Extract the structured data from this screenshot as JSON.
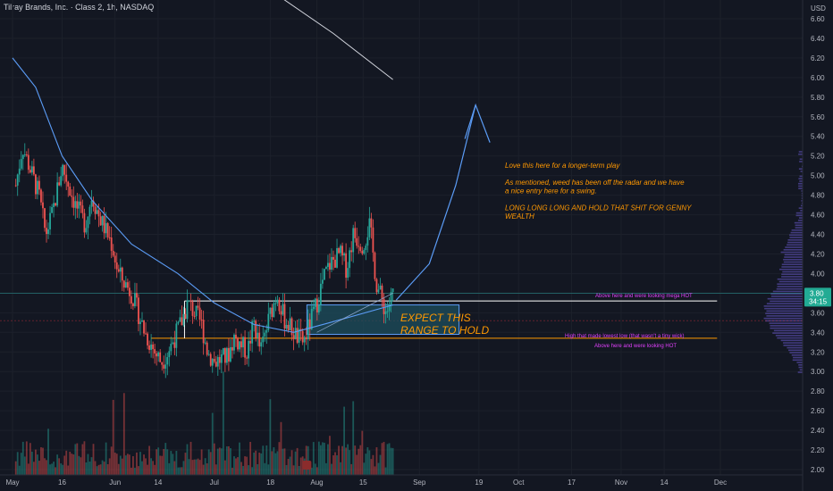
{
  "chart_data": {
    "type": "candlestick",
    "title": "Tilray Brands, Inc. · Class 2, 1h, NASDAQ",
    "currency": "USD",
    "y_ticks": [
      6.6,
      6.4,
      6.2,
      6.0,
      5.8,
      5.6,
      5.4,
      5.2,
      5.0,
      4.8,
      4.6,
      4.4,
      4.2,
      4.0,
      3.8,
      3.6,
      3.4,
      3.2,
      3.0,
      2.8,
      2.6,
      2.4,
      2.2,
      2.0
    ],
    "ylim": [
      1.95,
      6.78
    ],
    "x_labels": [
      "May",
      "16",
      "Jun",
      "14",
      "Jul",
      "18",
      "Aug",
      "15",
      "Sep",
      "19",
      "Oct",
      "17",
      "Nov",
      "14",
      "Dec"
    ],
    "last_price": "3.80",
    "countdown": "34:15",
    "price_path": [
      {
        "x": "2022-05-02",
        "y": 4.9
      },
      {
        "x": "2022-05-04",
        "y": 5.3
      },
      {
        "x": "2022-05-06",
        "y": 5.1
      },
      {
        "x": "2022-05-09",
        "y": 4.8
      },
      {
        "x": "2022-05-11",
        "y": 4.4
      },
      {
        "x": "2022-05-13",
        "y": 4.6
      },
      {
        "x": "2022-05-16",
        "y": 5.1
      },
      {
        "x": "2022-05-18",
        "y": 4.9
      },
      {
        "x": "2022-05-20",
        "y": 4.7
      },
      {
        "x": "2022-05-23",
        "y": 4.5
      },
      {
        "x": "2022-05-25",
        "y": 4.8
      },
      {
        "x": "2022-05-27",
        "y": 4.6
      },
      {
        "x": "2022-05-31",
        "y": 4.3
      },
      {
        "x": "2022-06-02",
        "y": 4.0
      },
      {
        "x": "2022-06-06",
        "y": 3.8
      },
      {
        "x": "2022-06-08",
        "y": 3.6
      },
      {
        "x": "2022-06-10",
        "y": 3.4
      },
      {
        "x": "2022-06-13",
        "y": 3.2
      },
      {
        "x": "2022-06-15",
        "y": 3.1
      },
      {
        "x": "2022-06-17",
        "y": 3.2
      },
      {
        "x": "2022-06-21",
        "y": 3.5
      },
      {
        "x": "2022-06-23",
        "y": 3.7
      },
      {
        "x": "2022-06-27",
        "y": 3.5
      },
      {
        "x": "2022-06-29",
        "y": 3.2
      },
      {
        "x": "2022-07-01",
        "y": 3.1
      },
      {
        "x": "2022-07-05",
        "y": 3.15
      },
      {
        "x": "2022-07-07",
        "y": 3.35
      },
      {
        "x": "2022-07-11",
        "y": 3.2
      },
      {
        "x": "2022-07-13",
        "y": 3.5
      },
      {
        "x": "2022-07-15",
        "y": 3.2
      },
      {
        "x": "2022-07-18",
        "y": 3.6
      },
      {
        "x": "2022-07-20",
        "y": 3.8
      },
      {
        "x": "2022-07-22",
        "y": 3.55
      },
      {
        "x": "2022-07-26",
        "y": 3.35
      },
      {
        "x": "2022-07-28",
        "y": 3.3
      },
      {
        "x": "2022-08-01",
        "y": 3.7
      },
      {
        "x": "2022-08-03",
        "y": 3.95
      },
      {
        "x": "2022-08-05",
        "y": 4.1
      },
      {
        "x": "2022-08-08",
        "y": 4.2
      },
      {
        "x": "2022-08-10",
        "y": 4.05
      },
      {
        "x": "2022-08-12",
        "y": 4.4
      },
      {
        "x": "2022-08-15",
        "y": 4.3
      },
      {
        "x": "2022-08-17",
        "y": 4.5
      },
      {
        "x": "2022-08-19",
        "y": 3.9
      },
      {
        "x": "2022-08-22",
        "y": 3.6
      },
      {
        "x": "2022-08-24",
        "y": 3.8
      }
    ],
    "moving_average": [
      {
        "x": "2022-05-01",
        "y": 6.2
      },
      {
        "x": "2022-05-08",
        "y": 5.9
      },
      {
        "x": "2022-05-16",
        "y": 5.2
      },
      {
        "x": "2022-05-25",
        "y": 4.75
      },
      {
        "x": "2022-06-06",
        "y": 4.3
      },
      {
        "x": "2022-06-20",
        "y": 4.0
      },
      {
        "x": "2022-07-01",
        "y": 3.7
      },
      {
        "x": "2022-07-13",
        "y": 3.48
      },
      {
        "x": "2022-07-25",
        "y": 3.4
      },
      {
        "x": "2022-08-05",
        "y": 3.5
      },
      {
        "x": "2022-08-24",
        "y": 3.68
      }
    ],
    "upper_ma": [
      {
        "x": "2022-07-21",
        "y": 6.82
      },
      {
        "x": "2022-08-06",
        "y": 6.45
      },
      {
        "x": "2022-08-24",
        "y": 5.98
      }
    ],
    "projection": [
      {
        "x": "2022-08-25",
        "y": 3.73
      },
      {
        "x": "2022-09-04",
        "y": 4.1
      },
      {
        "x": "2022-09-12",
        "y": 4.9
      },
      {
        "x": "2022-09-18",
        "y": 5.72
      }
    ],
    "levels": [
      {
        "price": 3.8,
        "label": "Above here and were looking mega HOT",
        "color": "#787b86"
      },
      {
        "price": 3.72,
        "label": "",
        "color": "#ffffff"
      },
      {
        "price": 3.52,
        "label": "",
        "color": "#f23645"
      },
      {
        "price": 3.34,
        "label": "High that made lowest low (that wasn't a tiny wick)",
        "color": "#ff9800"
      },
      {
        "price": 3.26,
        "label": "Above here and were looking HOT",
        "color": "#e040fb"
      }
    ],
    "range_box": {
      "x0": "2022-07-29",
      "x1": "2022-09-13",
      "y0": 3.38,
      "y1": 3.68,
      "label": [
        "EXPECT THIS",
        "RANGE TO HOLD"
      ]
    },
    "annotation": [
      "Love this here for a longer-term play",
      "",
      "As mentioned, weed has been off the radar and we have",
      "a nice entry here for a swing.",
      "",
      "LONG LONG LONG AND HOLD THAT SHIT FOR GENNY",
      "WEALTH"
    ],
    "colors": {
      "up": "#26a69a",
      "down": "#ef5350",
      "ma": "#5b9cf6",
      "upper_ma": "#d1d4dc",
      "box_fill": "#1e4f5e",
      "box_border": "#5b9cf6",
      "level_hot": "#ff9800",
      "level_pink": "#e040fb",
      "price_tag": "#22ab94"
    }
  }
}
